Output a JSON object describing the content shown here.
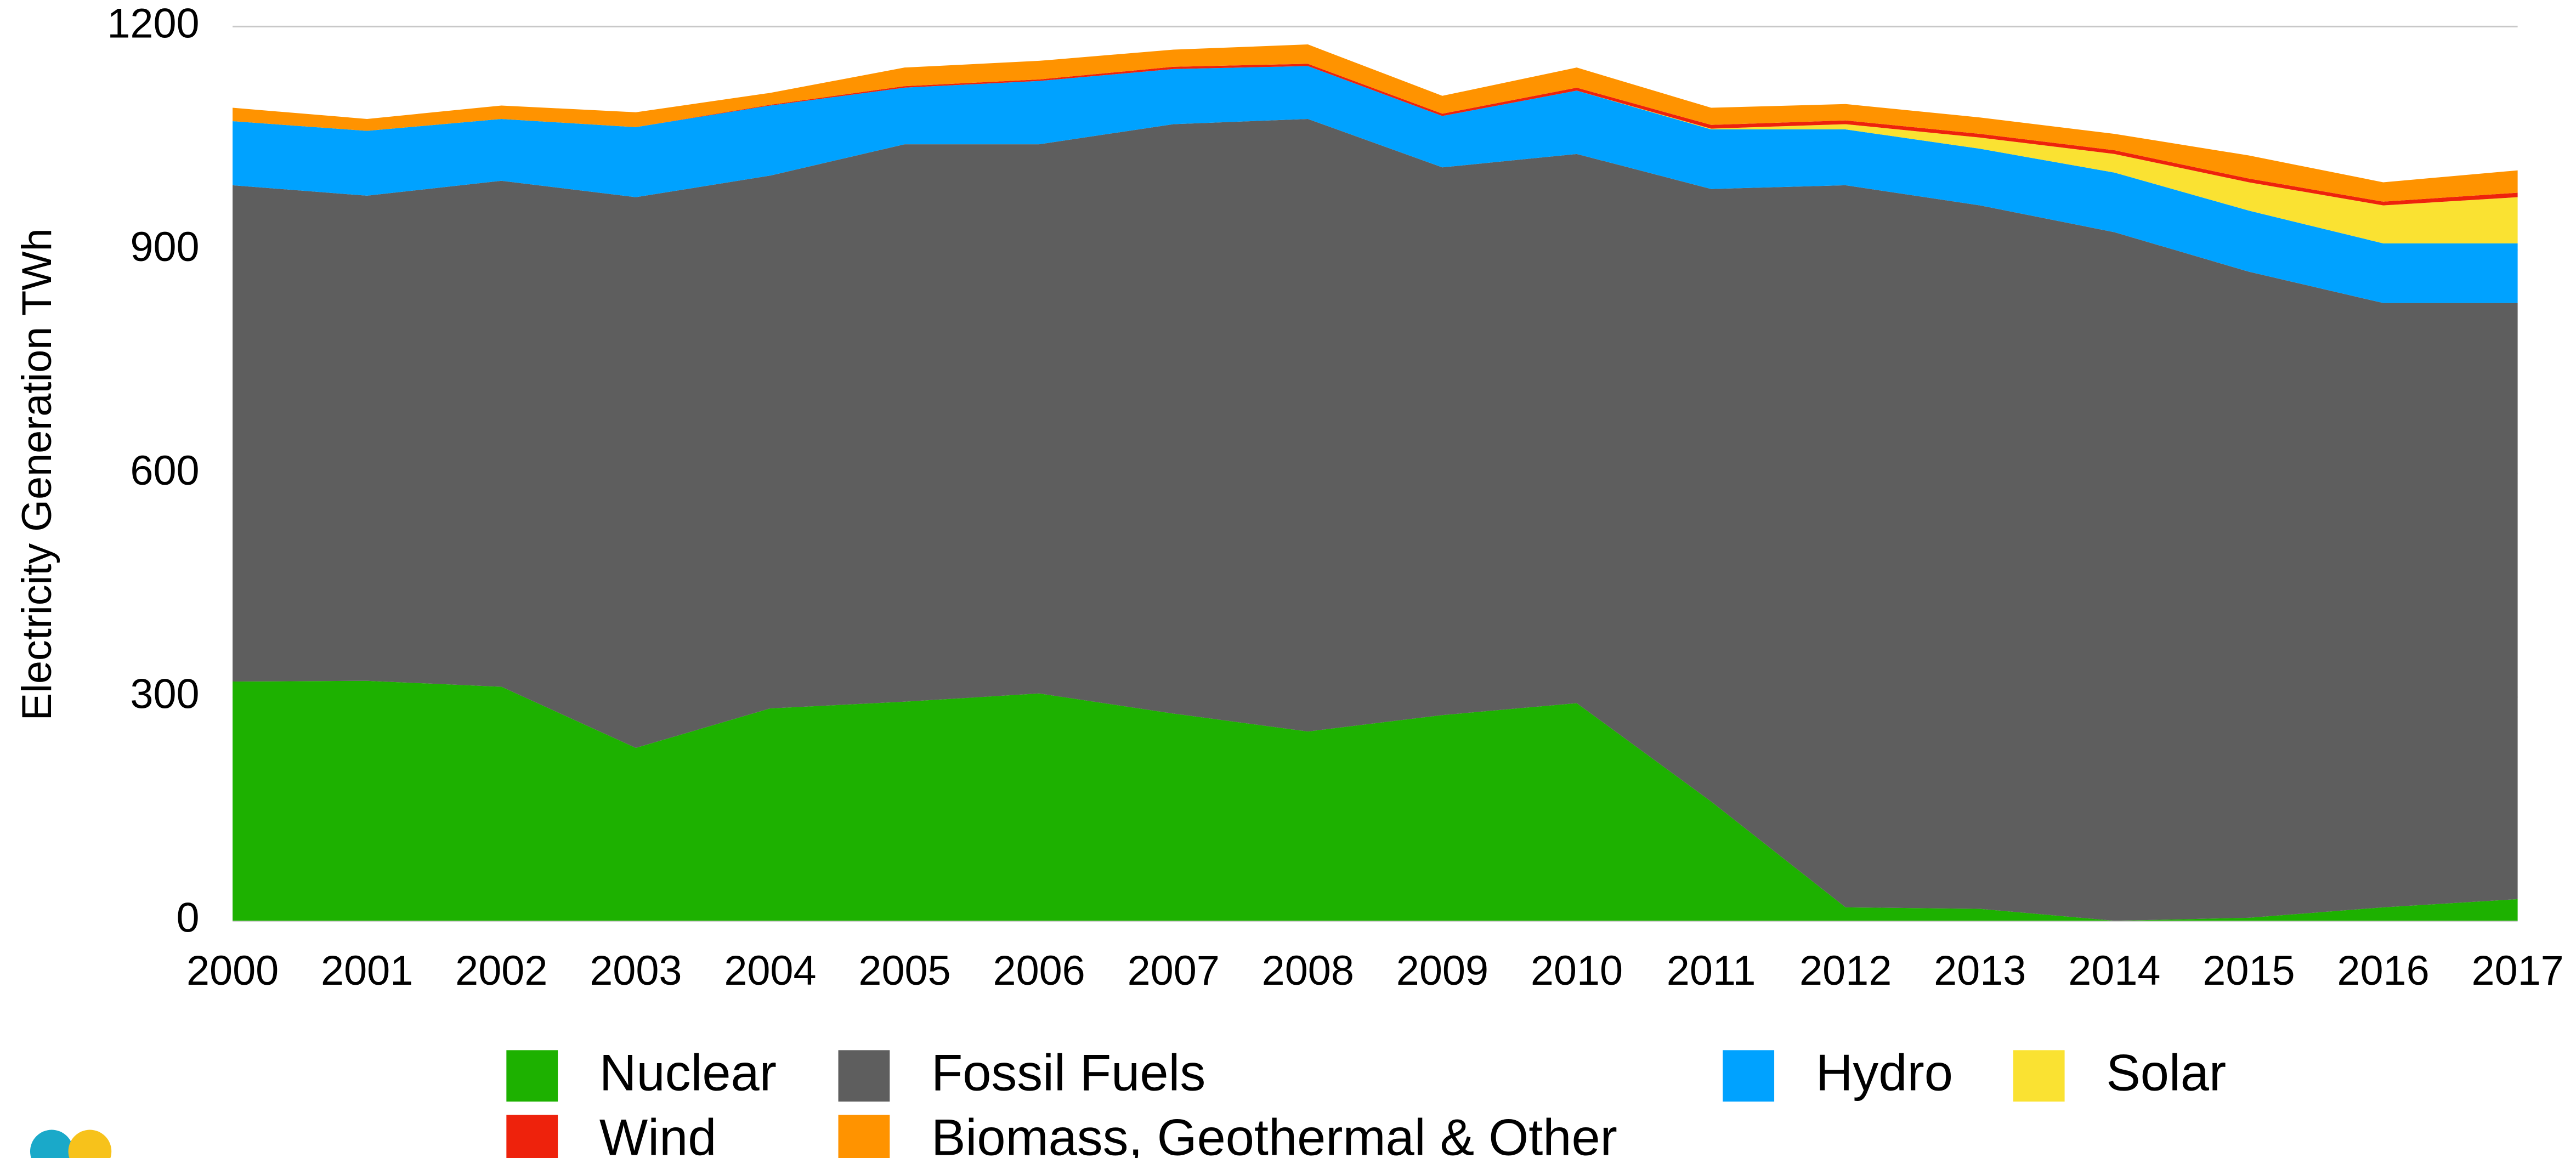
{
  "chart_data": {
    "type": "stacked_area",
    "y_label": "Electricity Generation TWh",
    "categories": [
      "2000",
      "2001",
      "2002",
      "2003",
      "2004",
      "2005",
      "2006",
      "2007",
      "2008",
      "2009",
      "2010",
      "2011",
      "2012",
      "2013",
      "2014",
      "2015",
      "2016",
      "2017"
    ],
    "series": [
      {
        "name": "Nuclear",
        "color": "#1db100",
        "values": [
          321,
          322,
          314,
          232,
          285,
          294,
          305,
          278,
          254,
          276,
          292,
          160,
          18,
          16,
          0,
          4,
          18,
          29
        ]
      },
      {
        "name": "Fossil Fuels",
        "color": "#5e5e5e",
        "values": [
          666,
          651,
          679,
          739,
          715,
          748,
          737,
          791,
          822,
          735,
          737,
          822,
          969,
          944,
          924,
          867,
          811,
          800
        ]
      },
      {
        "name": "Hydro",
        "color": "#00a2ff",
        "values": [
          86,
          87,
          83,
          94,
          94,
          76,
          85,
          74,
          71,
          69,
          85,
          80,
          75,
          76,
          80,
          82,
          80,
          80
        ]
      },
      {
        "name": "Solar",
        "color": "#fae232",
        "values": [
          0,
          0,
          0,
          0,
          0,
          0,
          0,
          0,
          0,
          0,
          0,
          1,
          7,
          15,
          25,
          38,
          51,
          62
        ]
      },
      {
        "name": "Wind",
        "color": "#ee220c",
        "values": [
          0,
          0,
          0,
          0,
          1,
          2,
          2,
          3,
          3,
          3,
          4,
          5,
          5,
          5,
          5,
          5,
          5,
          6
        ]
      },
      {
        "name": "Biomass, Geothermal & Other",
        "color": "#ff9300",
        "values": [
          18,
          16,
          18,
          20,
          16,
          25,
          25,
          23,
          26,
          24,
          27,
          23,
          22,
          22,
          22,
          31,
          26,
          30
        ]
      }
    ],
    "ylim": [
      0,
      1200
    ],
    "yticks": [
      0,
      300,
      600,
      900,
      1200
    ],
    "grid": true
  }
}
